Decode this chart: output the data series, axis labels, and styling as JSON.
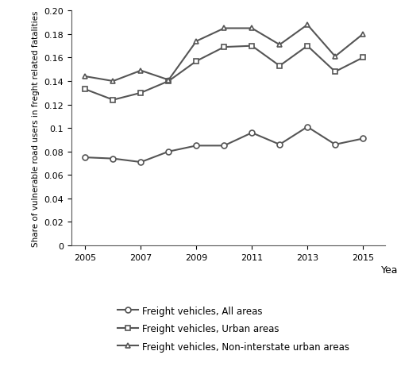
{
  "years": [
    2005,
    2006,
    2007,
    2008,
    2009,
    2010,
    2011,
    2012,
    2013,
    2014,
    2015
  ],
  "all_areas": [
    0.075,
    0.074,
    0.071,
    0.08,
    0.085,
    0.085,
    0.096,
    0.086,
    0.101,
    0.086,
    0.091
  ],
  "urban_areas": [
    0.133,
    0.124,
    0.13,
    0.14,
    0.157,
    0.169,
    0.17,
    0.153,
    0.17,
    0.148,
    0.16
  ],
  "non_interstate_urban": [
    0.144,
    0.14,
    0.149,
    0.141,
    0.174,
    0.185,
    0.185,
    0.171,
    0.188,
    0.161,
    0.18
  ],
  "ylabel": "Share of vulnerable road users in freght related fatalities",
  "xlabel": "Year",
  "legend_all": "Freight vehicles, All areas",
  "legend_urban": "Freight vehicles, Urban areas",
  "legend_nonint": "Freight vehicles, Non-interstate urban areas",
  "ylim": [
    0,
    0.2
  ],
  "yticks": [
    0,
    0.02,
    0.04,
    0.06,
    0.08,
    0.1,
    0.12,
    0.14,
    0.16,
    0.18,
    0.2
  ],
  "line_color": "#555555",
  "marker_circle": "o",
  "marker_square": "s",
  "marker_triangle": "^",
  "marker_size": 5,
  "linewidth": 1.5
}
